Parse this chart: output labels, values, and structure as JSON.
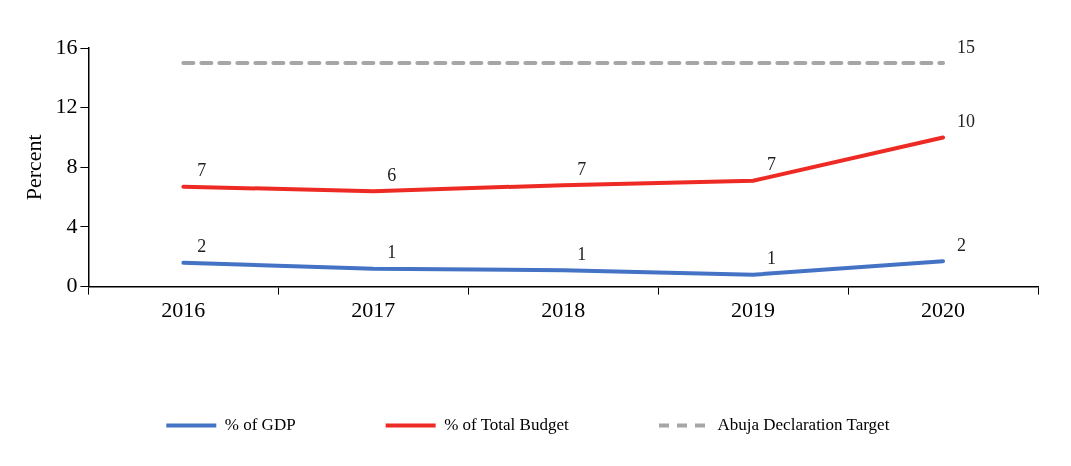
{
  "chart_data": {
    "type": "line",
    "ylabel": "Percent",
    "categories": [
      "2016",
      "2017",
      "2018",
      "2019",
      "2020"
    ],
    "ylim": [
      0,
      16
    ],
    "yticks": [
      0,
      4,
      8,
      12,
      16
    ],
    "grid": false,
    "legend": "bottom",
    "marker": "none",
    "series": [
      {
        "name": "% of GDP",
        "color": "#4472c4",
        "values": [
          1.6,
          1.2,
          1.1,
          0.8,
          1.7
        ],
        "value_labels": [
          "2",
          "1",
          "1",
          "1",
          "2"
        ],
        "line_style": "solid"
      },
      {
        "name": "% of Total Budget",
        "color": "#ee2a24",
        "values": [
          6.7,
          6.4,
          6.8,
          7.1,
          10
        ],
        "value_labels": [
          "7",
          "6",
          "7",
          "7",
          "10"
        ],
        "line_style": "solid"
      },
      {
        "name": "Abuja Declaration Target",
        "color": "#a6a6a6",
        "values": [
          15,
          15,
          15,
          15,
          15
        ],
        "value_labels": [
          null,
          null,
          null,
          null,
          "15"
        ],
        "line_style": "dashed"
      }
    ]
  }
}
